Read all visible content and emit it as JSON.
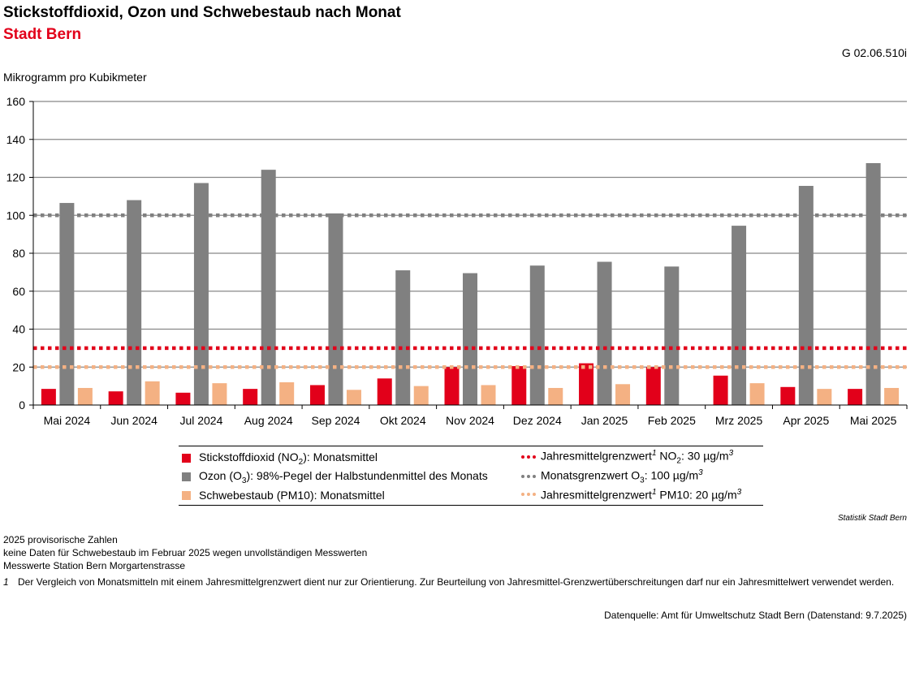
{
  "header": {
    "title": "Stickstoffdioxid, Ozon und Schwebestaub nach Monat",
    "subtitle": "Stadt Bern",
    "code": "G 02.06.510i",
    "ylabel": "Mikrogramm pro Kubikmeter"
  },
  "colors": {
    "no2": "#e2001a",
    "o3": "#808080",
    "pm10": "#f4b183",
    "grid": "#888888"
  },
  "chart_data": {
    "type": "bar",
    "title": "Stickstoffdioxid, Ozon und Schwebestaub nach Monat",
    "ylabel": "Mikrogramm pro Kubikmeter",
    "ylim": [
      0,
      160
    ],
    "yticks": [
      "0",
      "20",
      "40",
      "60",
      "80",
      "100",
      "120",
      "140",
      "160"
    ],
    "grid": true,
    "legend_position": "bottom",
    "categories": [
      "Mai 2024",
      "Jun 2024",
      "Jul 2024",
      "Aug 2024",
      "Sep 2024",
      "Okt 2024",
      "Nov 2024",
      "Dez 2024",
      "Jan 2025",
      "Feb 2025",
      "Mrz 2025",
      "Apr 2025",
      "Mai 2025"
    ],
    "series": [
      {
        "key": "no2",
        "values": [
          8.5,
          7.2,
          6.5,
          8.5,
          10.5,
          14,
          20,
          20.5,
          22,
          20,
          15.5,
          9.5,
          8.5
        ]
      },
      {
        "key": "o3",
        "values": [
          106.5,
          108,
          117,
          124,
          101,
          71,
          69.5,
          73.5,
          75.5,
          73,
          94.5,
          115.5,
          127.5
        ]
      },
      {
        "key": "pm10",
        "values": [
          9,
          12.5,
          11.5,
          12,
          8,
          10,
          10.5,
          9,
          11,
          null,
          11.5,
          8.5,
          9
        ]
      }
    ],
    "reference_lines": [
      {
        "key": "no2_limit",
        "value": 30
      },
      {
        "key": "o3_limit",
        "value": 100
      },
      {
        "key": "pm10_limit",
        "value": 20
      }
    ]
  },
  "legend": {
    "no2": {
      "pre": "Stickstoffdioxid (NO",
      "sub": "2",
      "post": "): Monatsmittel"
    },
    "o3": {
      "pre": "Ozon (O",
      "sub": "3",
      "post": "): 98%-Pegel der Halbstundenmittel des Monats"
    },
    "pm10": {
      "pre": "Schwebestaub (PM10): Monatsmittel"
    },
    "no2_limit": {
      "pre": "Jahresmittelgrenzwert",
      "sup": "1",
      "mid": " NO",
      "sub": "2",
      "post": ": 30 µg/m",
      "sup2": "3"
    },
    "o3_limit": {
      "pre": "Monatsgrenzwert O",
      "sub": "3",
      "post": ": 100 µg/m",
      "sup2": "3"
    },
    "pm10_limit": {
      "pre": "Jahresmittelgrenzwert",
      "sup": "1",
      "mid": " PM10: 20 µg/m",
      "sup2": "3"
    }
  },
  "credit": "Statistik Stadt Bern",
  "notes": [
    "2025 provisorische Zahlen",
    "keine Daten für Schwebestaub im Februar 2025 wegen unvollständigen Messwerten",
    "Messwerte Station Bern Morgartenstrasse"
  ],
  "footnote": {
    "mark": "1",
    "text": "Der Vergleich von Monatsmitteln mit einem Jahresmittelgrenzwert dient nur zur Orientierung. Zur Beurteilung von Jahresmittel-Grenzwertüberschreitungen darf nur ein Jahresmittelwert verwendet werden."
  },
  "source": "Datenquelle: Amt für Umweltschutz Stadt Bern (Datenstand: 9.7.2025)"
}
